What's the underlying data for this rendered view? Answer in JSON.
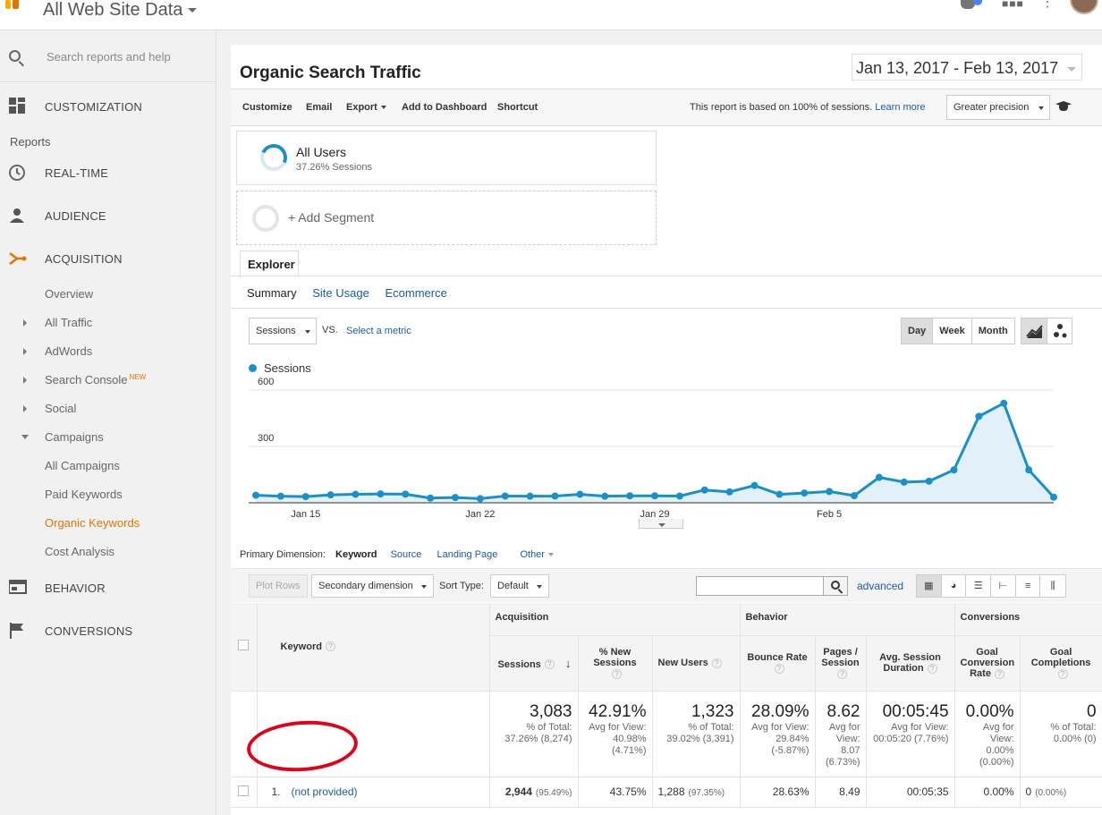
{
  "app": {
    "property": "All Web Site Data"
  },
  "sidebar": {
    "search_placeholder": "Search reports and help",
    "customization": "CUSTOMIZATION",
    "reports_label": "Reports",
    "realtime": "REAL-TIME",
    "audience": "AUDIENCE",
    "acquisition": "ACQUISITION",
    "sub": {
      "overview": "Overview",
      "all_traffic": "All Traffic",
      "adwords": "AdWords",
      "search_console": "Search Console",
      "new_badge": "NEW",
      "social": "Social",
      "campaigns": "Campaigns",
      "all_campaigns": "All Campaigns",
      "paid_keywords": "Paid Keywords",
      "organic_keywords": "Organic Keywords",
      "cost_analysis": "Cost Analysis"
    },
    "behavior": "BEHAVIOR",
    "conversions": "CONVERSIONS"
  },
  "report": {
    "title": "Organic Search Traffic",
    "date_range": "Jan 13, 2017 - Feb 13, 2017"
  },
  "toolbar": {
    "customize": "Customize",
    "email": "Email",
    "export": "Export",
    "add_dashboard": "Add to Dashboard",
    "shortcut": "Shortcut",
    "note": "This report is based on 100% of sessions.",
    "learn_more": "Learn more",
    "precision": "Greater precision"
  },
  "segments": {
    "name": "All Users",
    "sub": "37.26% Sessions",
    "add": "+ Add Segment"
  },
  "explorer": {
    "tab": "Explorer",
    "subtabs": [
      "Summary",
      "Site Usage",
      "Ecommerce"
    ]
  },
  "chart_controls": {
    "metric": "Sessions",
    "vs": "VS.",
    "select_metric": "Select a metric",
    "day": "Day",
    "week": "Week",
    "month": "Month"
  },
  "chart_data": {
    "type": "area",
    "series": [
      {
        "name": "Sessions",
        "values": [
          40,
          35,
          33,
          42,
          45,
          47,
          46,
          25,
          28,
          22,
          36,
          35,
          36,
          45,
          35,
          37,
          37,
          36,
          68,
          58,
          92,
          45,
          52,
          60,
          38,
          135,
          110,
          115,
          175,
          460,
          530,
          175,
          30
        ]
      }
    ],
    "x_ticks": [
      "Jan 15",
      "Jan 22",
      "Jan 29",
      "Feb 5"
    ],
    "y_ticks": [
      "600",
      "300"
    ],
    "ylim": [
      0,
      600
    ],
    "color": "#1a90c8"
  },
  "table_controls": {
    "primary_label": "Primary Dimension:",
    "dims": [
      "Keyword",
      "Source",
      "Landing Page",
      "Other"
    ],
    "plot_rows": "Plot Rows",
    "secondary": "Secondary dimension",
    "sort_label": "Sort Type:",
    "sort_value": "Default",
    "advanced": "advanced"
  },
  "table": {
    "groups": {
      "acquisition": "Acquisition",
      "behavior": "Behavior",
      "conversions": "Conversions"
    },
    "headers": {
      "keyword": "Keyword",
      "sessions": "Sessions",
      "new_sessions": "% New Sessions",
      "new_users": "New Users",
      "bounce": "Bounce Rate",
      "pages": "Pages / Session",
      "duration": "Avg. Session Duration",
      "conv_rate": "Goal Conversion Rate",
      "completions": "Goal Completions"
    },
    "totals": {
      "sessions": "3,083",
      "sessions_sub": "% of Total: 37.26% (8,274)",
      "new_sessions": "42.91%",
      "new_sessions_sub": "Avg for View: 40.98% (4.71%)",
      "new_users": "1,323",
      "new_users_sub": "% of Total: 39.02% (3,391)",
      "bounce": "28.09%",
      "bounce_sub": "Avg for View: 29.84% (-5.87%)",
      "pages": "8.62",
      "pages_sub": "Avg for View: 8.07 (6.73%)",
      "duration": "00:05:45",
      "duration_sub": "Avg for View: 00:05:20 (7.76%)",
      "conv_rate": "0.00%",
      "conv_rate_sub": "Avg for View: 0.00% (0.00%)",
      "completions": "0",
      "completions_sub": "% of Total: 0.00% (0)"
    },
    "rows": [
      {
        "index": "1.",
        "keyword": "(not provided)",
        "sessions": "2,944",
        "sessions_pct": "(95.49%)",
        "new_sessions": "43.75%",
        "new_users": "1,288",
        "new_users_pct": "(97.35%)",
        "bounce": "28.63%",
        "pages": "8.49",
        "duration": "00:05:35",
        "conv_rate": "0.00%",
        "completions": "0",
        "completions_pct": "(0.00%)"
      }
    ]
  },
  "colors": {
    "accent": "#e37400",
    "link": "#1a5aa6",
    "series": "#1a90c8",
    "highlight": "#e0001b"
  }
}
